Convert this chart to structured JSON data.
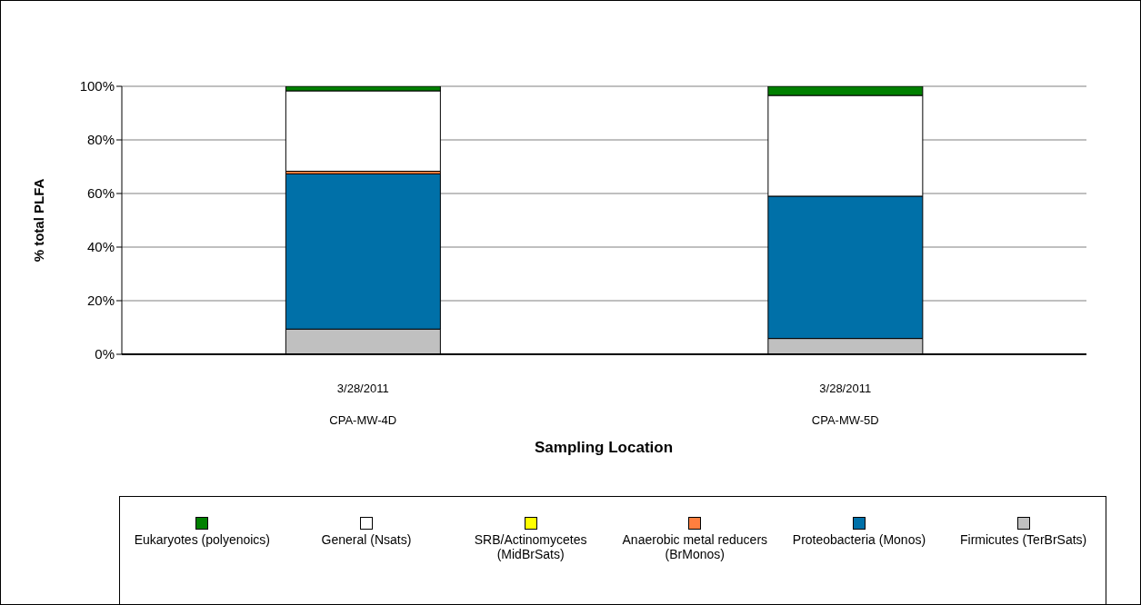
{
  "chart_data": {
    "type": "bar",
    "stacked": true,
    "ylabel": "% total PLFA",
    "xlabel": "Sampling Location",
    "categories": [
      "3/28/2011\nCPA-MW-4D",
      "3/28/2011\nCPA-MW-5D"
    ],
    "series": [
      {
        "name": "Firmicutes (TerBrSats)",
        "color": "#c0c0c0",
        "values": [
          9.4,
          5.9
        ]
      },
      {
        "name": "Proteobacteria (Monos)",
        "color": "#0070a8",
        "values": [
          57.9,
          53.1
        ]
      },
      {
        "name": "Anaerobic metal reducers (BrMonos)",
        "color": "#ff7f3f",
        "values": [
          1.0,
          0
        ]
      },
      {
        "name": "SRB/Actinomycetes (MidBrSats)",
        "color": "#ffff00",
        "values": [
          0,
          0
        ]
      },
      {
        "name": "General (Nsats)",
        "color": "#ffffff",
        "values": [
          30.0,
          37.6
        ]
      },
      {
        "name": "Eukaryotes (polyenoics)",
        "color": "#008000",
        "values": [
          1.7,
          3.4
        ]
      }
    ],
    "ylim": [
      0,
      100
    ],
    "yticks": [
      {
        "value": 0,
        "label": "0%"
      },
      {
        "value": 20,
        "label": "20%"
      },
      {
        "value": 40,
        "label": "40%"
      },
      {
        "value": 60,
        "label": "60%"
      },
      {
        "value": 80,
        "label": "80%"
      },
      {
        "value": 100,
        "label": "100%"
      }
    ],
    "grid": "y",
    "legend": "bottom"
  }
}
